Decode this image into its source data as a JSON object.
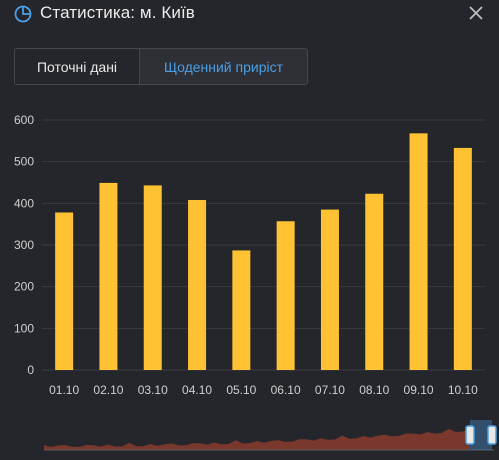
{
  "header": {
    "title": "Статистика: м. Київ",
    "icon": "pie-chart-icon",
    "close_icon": "close-icon"
  },
  "tabs": [
    {
      "label": "Поточні дані",
      "active": false
    },
    {
      "label": "Щоденний приріст",
      "active": true
    }
  ],
  "colors": {
    "background": "#25262b",
    "bar": "#ffc233",
    "accent": "#4a9fe6",
    "grid": "#3a3b42",
    "navigator_area": "#8a3b2b"
  },
  "chart_data": {
    "type": "bar",
    "categories": [
      "01.10",
      "02.10",
      "03.10",
      "04.10",
      "05.10",
      "06.10",
      "07.10",
      "08.10",
      "09.10",
      "10.10"
    ],
    "values": [
      378,
      449,
      443,
      408,
      287,
      357,
      385,
      423,
      568,
      533
    ],
    "ylim": [
      0,
      600
    ],
    "yticks": [
      0,
      100,
      200,
      300,
      400,
      500,
      600
    ],
    "grid": true,
    "title": "",
    "xlabel": "",
    "ylabel": ""
  }
}
